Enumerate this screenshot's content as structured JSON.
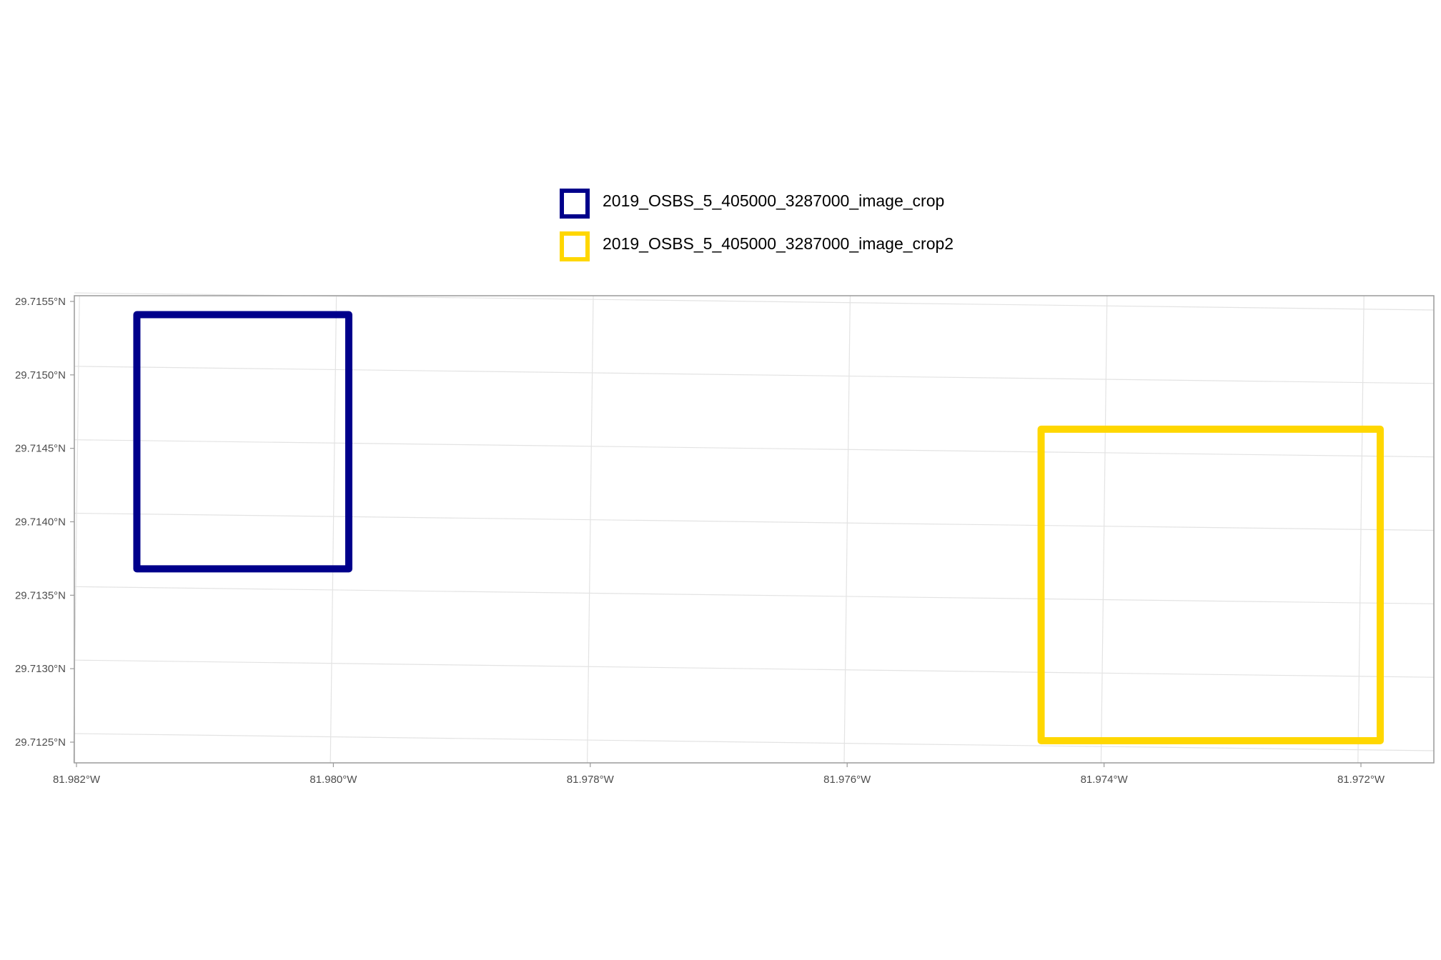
{
  "chart_data": {
    "type": "map",
    "title": "",
    "xlabel": "",
    "ylabel": "",
    "grid": true,
    "legend_position": "top",
    "x_ticks": [
      "81.982°W",
      "81.980°W",
      "81.978°W",
      "81.976°W",
      "81.974°W",
      "81.972°W"
    ],
    "x_tick_values": [
      -81.982,
      -81.98,
      -81.978,
      -81.976,
      -81.974,
      -81.972
    ],
    "y_ticks": [
      "29.7125°N",
      "29.7130°N",
      "29.7135°N",
      "29.7140°N",
      "29.7145°N",
      "29.7150°N",
      "29.7155°N"
    ],
    "y_tick_values": [
      29.7125,
      29.713,
      29.7135,
      29.714,
      29.7145,
      29.715,
      29.7155
    ],
    "xlim": [
      -81.9822,
      -81.9711
    ],
    "ylim": [
      29.71236,
      29.71555
    ],
    "series": [
      {
        "name": "2019_OSBS_5_405000_3287000_image_crop",
        "color": "#00008B",
        "bbox_lonlat": {
          "west": -81.98153,
          "east": -81.97988,
          "south": 29.71368,
          "north": 29.71541
        }
      },
      {
        "name": "2019_OSBS_5_405000_3287000_image_crop2",
        "color": "#FFD700",
        "bbox_lonlat": {
          "west": -81.97449,
          "east": -81.97185,
          "south": 29.71251,
          "north": 29.71463
        }
      }
    ]
  }
}
